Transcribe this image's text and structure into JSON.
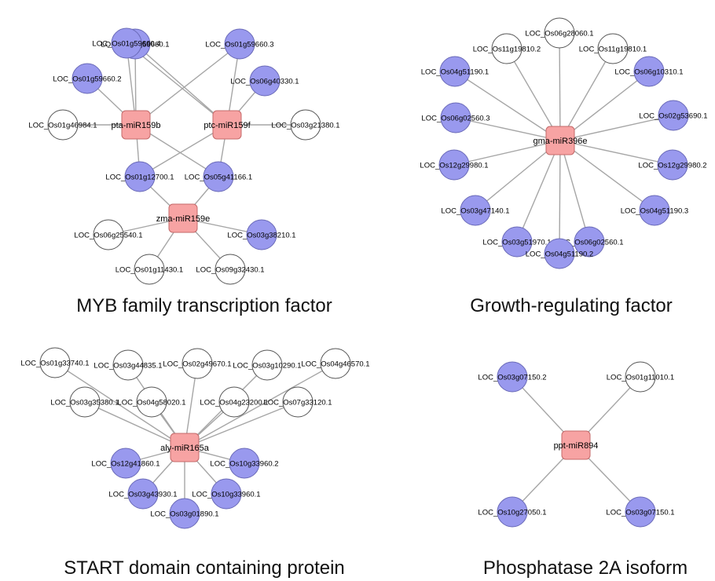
{
  "panels": [
    {
      "id": "myb",
      "caption": "MYB family transcription factor",
      "mirnas": [
        "pta-miR159b",
        "ptc-miR159f",
        "zma-miR159e"
      ],
      "targets": [
        {
          "label": "LOC_Os01g59660.1",
          "color": "blue"
        },
        {
          "label": "LOC_Os01g59660.4",
          "color": "blue"
        },
        {
          "label": "LOC_Os01g59660.3",
          "color": "blue"
        },
        {
          "label": "LOC_Os01g59660.2",
          "color": "blue"
        },
        {
          "label": "LOC_Os06g40330.1",
          "color": "blue"
        },
        {
          "label": "LOC_Os01g46984.1",
          "color": "white"
        },
        {
          "label": "LOC_Os03g21380.1",
          "color": "white"
        },
        {
          "label": "LOC_Os01g12700.1",
          "color": "blue"
        },
        {
          "label": "LOC_Os05g41166.1",
          "color": "blue"
        },
        {
          "label": "LOC_Os06g25540.1",
          "color": "white"
        },
        {
          "label": "LOC_Os03g38210.1",
          "color": "blue"
        },
        {
          "label": "LOC_Os01g11430.1",
          "color": "white"
        },
        {
          "label": "LOC_Os09g32430.1",
          "color": "white"
        }
      ],
      "edges": [
        [
          0,
          0
        ],
        [
          0,
          1
        ],
        [
          0,
          2
        ],
        [
          0,
          3
        ],
        [
          0,
          5
        ],
        [
          0,
          7
        ],
        [
          0,
          8
        ],
        [
          1,
          0
        ],
        [
          1,
          1
        ],
        [
          1,
          2
        ],
        [
          1,
          4
        ],
        [
          1,
          6
        ],
        [
          1,
          7
        ],
        [
          1,
          8
        ],
        [
          2,
          7
        ],
        [
          2,
          8
        ],
        [
          2,
          9
        ],
        [
          2,
          10
        ],
        [
          2,
          11
        ],
        [
          2,
          12
        ]
      ]
    },
    {
      "id": "grf",
      "caption": "Growth-regulating factor",
      "mirnas": [
        "gma-miR396e"
      ],
      "targets": [
        {
          "label": "LOC_Os06g28060.1",
          "color": "white"
        },
        {
          "label": "LOC_Os11g19810.2",
          "color": "white"
        },
        {
          "label": "LOC_Os11g19810.1",
          "color": "white"
        },
        {
          "label": "LOC_Os04g51190.1",
          "color": "blue"
        },
        {
          "label": "LOC_Os06g10310.1",
          "color": "blue"
        },
        {
          "label": "LOC_Os06g02560.3",
          "color": "blue"
        },
        {
          "label": "LOC_Os02g53690.1",
          "color": "blue"
        },
        {
          "label": "LOC_Os12g29980.1",
          "color": "blue"
        },
        {
          "label": "LOC_Os12g29980.2",
          "color": "blue"
        },
        {
          "label": "LOC_Os03g47140.1",
          "color": "blue"
        },
        {
          "label": "LOC_Os04g51190.3",
          "color": "blue"
        },
        {
          "label": "LOC_Os03g51970.1",
          "color": "blue"
        },
        {
          "label": "LOC_Os06g02560.1",
          "color": "blue"
        },
        {
          "label": "LOC_Os04g51190.2",
          "color": "blue"
        }
      ],
      "edges": [
        [
          0,
          0
        ],
        [
          0,
          1
        ],
        [
          0,
          2
        ],
        [
          0,
          3
        ],
        [
          0,
          4
        ],
        [
          0,
          5
        ],
        [
          0,
          6
        ],
        [
          0,
          7
        ],
        [
          0,
          8
        ],
        [
          0,
          9
        ],
        [
          0,
          10
        ],
        [
          0,
          11
        ],
        [
          0,
          12
        ],
        [
          0,
          13
        ]
      ]
    },
    {
      "id": "start",
      "caption": "START domain containing protein",
      "mirnas": [
        "aly-miR165a"
      ],
      "targets": [
        {
          "label": "LOC_Os01g33740.1",
          "color": "white"
        },
        {
          "label": "LOC_Os03g44835.1",
          "color": "white"
        },
        {
          "label": "LOC_Os02g49670.1",
          "color": "white"
        },
        {
          "label": "LOC_Os03g10290.1",
          "color": "white"
        },
        {
          "label": "LOC_Os04g46570.1",
          "color": "white"
        },
        {
          "label": "LOC_Os03g35380.1",
          "color": "white"
        },
        {
          "label": "LOC_Os04g58020.1",
          "color": "white"
        },
        {
          "label": "LOC_Os04g23200.1",
          "color": "white"
        },
        {
          "label": "LOC_Os07g33120.1",
          "color": "white"
        },
        {
          "label": "LOC_Os12g41860.1",
          "color": "blue"
        },
        {
          "label": "LOC_Os10g33960.2",
          "color": "blue"
        },
        {
          "label": "LOC_Os03g43930.1",
          "color": "blue"
        },
        {
          "label": "LOC_Os10g33960.1",
          "color": "blue"
        },
        {
          "label": "LOC_Os03g01890.1",
          "color": "blue"
        }
      ],
      "edges": [
        [
          0,
          0
        ],
        [
          0,
          1
        ],
        [
          0,
          2
        ],
        [
          0,
          3
        ],
        [
          0,
          4
        ],
        [
          0,
          5
        ],
        [
          0,
          6
        ],
        [
          0,
          7
        ],
        [
          0,
          8
        ],
        [
          0,
          9
        ],
        [
          0,
          10
        ],
        [
          0,
          11
        ],
        [
          0,
          12
        ],
        [
          0,
          13
        ]
      ]
    },
    {
      "id": "pp2a",
      "caption": "Phosphatase 2A isoform",
      "mirnas": [
        "ppt-miR894"
      ],
      "targets": [
        {
          "label": "LOC_Os03g07150.2",
          "color": "blue"
        },
        {
          "label": "LOC_Os01g11010.1",
          "color": "white"
        },
        {
          "label": "LOC_Os10g27050.1",
          "color": "blue"
        },
        {
          "label": "LOC_Os03g07150.1",
          "color": "blue"
        }
      ],
      "edges": [
        [
          0,
          0
        ],
        [
          0,
          1
        ],
        [
          0,
          2
        ],
        [
          0,
          3
        ]
      ]
    }
  ]
}
